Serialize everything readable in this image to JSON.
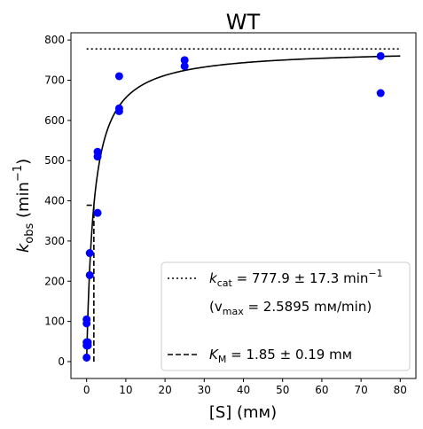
{
  "chart_data": {
    "type": "scatter",
    "title": "WT",
    "xlabel": "[S] (mм)",
    "ylabel": "k_obs (min⁻¹)",
    "xlim": [
      -4,
      84
    ],
    "ylim": [
      -42,
      818
    ],
    "x_ticks": [
      0,
      10,
      20,
      30,
      40,
      50,
      60,
      70,
      80
    ],
    "y_ticks": [
      0,
      100,
      200,
      300,
      400,
      500,
      600,
      700,
      800
    ],
    "grid": false,
    "legend_position": "lower-right",
    "colors": {
      "points": "#0000ff",
      "fit": "#000000",
      "reference": "#000000"
    },
    "points": {
      "x": [
        0,
        0,
        0,
        0,
        0,
        0.3,
        0.3,
        0.8,
        0.8,
        2.8,
        2.8,
        2.8,
        8.3,
        8.3,
        8.3,
        25,
        25,
        75,
        75
      ],
      "y": [
        10,
        40,
        48,
        95,
        105,
        40,
        48,
        215,
        270,
        370,
        510,
        522,
        623,
        630,
        710,
        735,
        750,
        668,
        760
      ]
    },
    "fit": {
      "model": "michaelis-menten",
      "kcat": 777.9,
      "km": 1.85,
      "x_range": [
        0,
        80
      ]
    },
    "kcat_line": {
      "y": 777.9,
      "x_range": [
        0,
        80
      ]
    },
    "km_marker": {
      "x": 1.85,
      "y_half": 389,
      "h_x_range": [
        0,
        1.85
      ],
      "v_y_range": [
        0,
        389
      ]
    },
    "legend": {
      "kcat_symbol": "k",
      "kcat_sub": "cat",
      "kcat_value": " = 777.9 ± 17.3 min",
      "kcat_unit_sup": "−1",
      "vmax_open": "(v",
      "vmax_sub": "max",
      "vmax_value": " = 2.5895 mм/min)",
      "km_symbol": "K",
      "km_sub": "M",
      "km_value": " = 1.85 ± 0.19 mм"
    }
  }
}
